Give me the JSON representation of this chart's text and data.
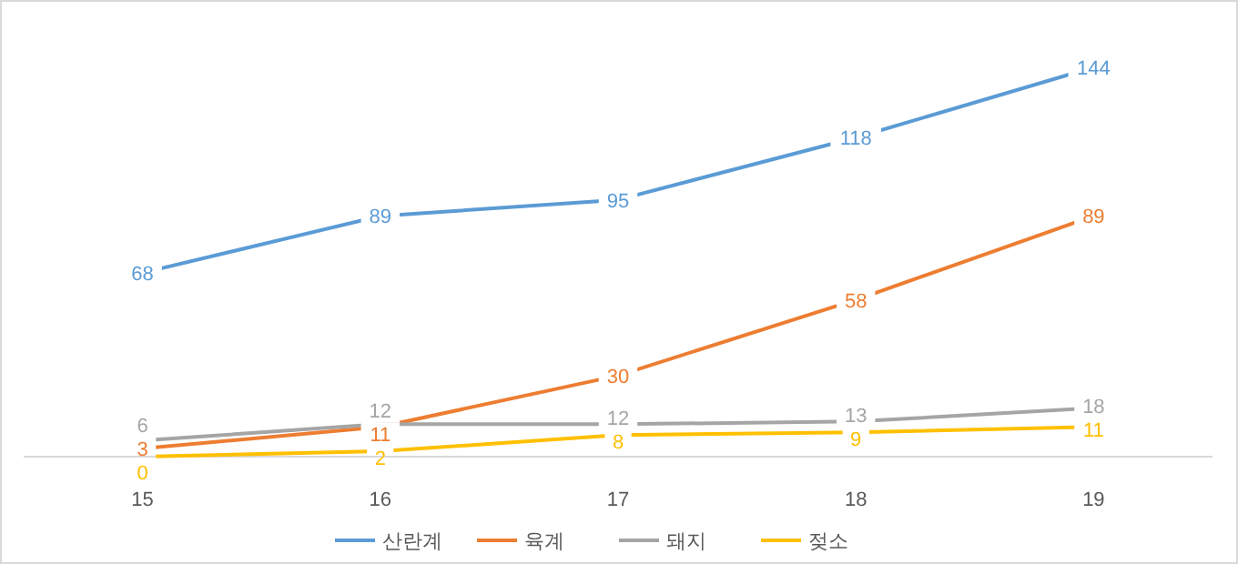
{
  "chart_data": {
    "type": "line",
    "categories": [
      "15",
      "16",
      "17",
      "18",
      "19"
    ],
    "data_labels": true,
    "legend": "bottom",
    "line_style": "solid",
    "marker": "none",
    "series": [
      {
        "name": "산란계",
        "color": "#5b9bd5",
        "values": [
          68,
          89,
          95,
          118,
          144
        ]
      },
      {
        "name": "육계",
        "color": "#ed7d31",
        "values": [
          3,
          11,
          30,
          58,
          89
        ]
      },
      {
        "name": "돼지",
        "color": "#a5a5a5",
        "values": [
          6,
          12,
          12,
          13,
          18
        ]
      },
      {
        "name": "젖소",
        "color": "#ffc000",
        "values": [
          0,
          2,
          8,
          9,
          11
        ]
      }
    ]
  }
}
